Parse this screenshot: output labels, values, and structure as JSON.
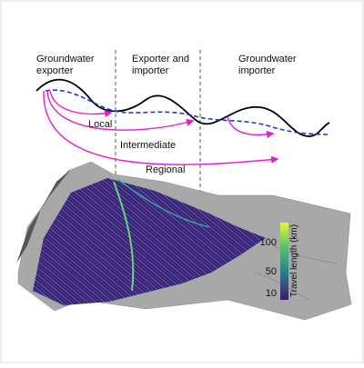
{
  "zones": {
    "left": "Groundwater\nexporter",
    "middle": "Exporter and\nimporter",
    "right": "Groundwater\nimporter"
  },
  "flows": {
    "local": "Local",
    "intermediate": "Intermediate",
    "regional": "Regional"
  },
  "colorbar": {
    "label": "Travel length (km)",
    "ticks": [
      100,
      50,
      10
    ]
  }
}
